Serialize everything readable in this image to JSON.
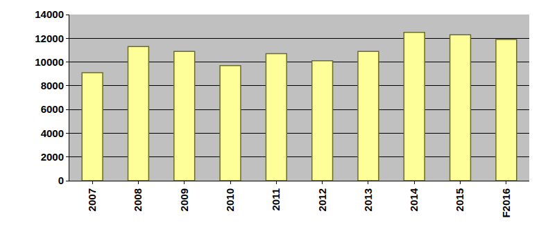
{
  "chart_data": {
    "type": "bar",
    "categories": [
      "2007",
      "2008",
      "2009",
      "2010",
      "2011",
      "2012",
      "2013",
      "2014",
      "2015",
      "F2016"
    ],
    "values": [
      9100,
      11300,
      10900,
      9700,
      10700,
      10100,
      10900,
      12500,
      12300,
      11900
    ],
    "color": "#ffff99",
    "ylim": [
      0,
      14000
    ],
    "yticks": [
      0,
      2000,
      4000,
      6000,
      8000,
      10000,
      12000,
      14000
    ],
    "grid": true
  }
}
